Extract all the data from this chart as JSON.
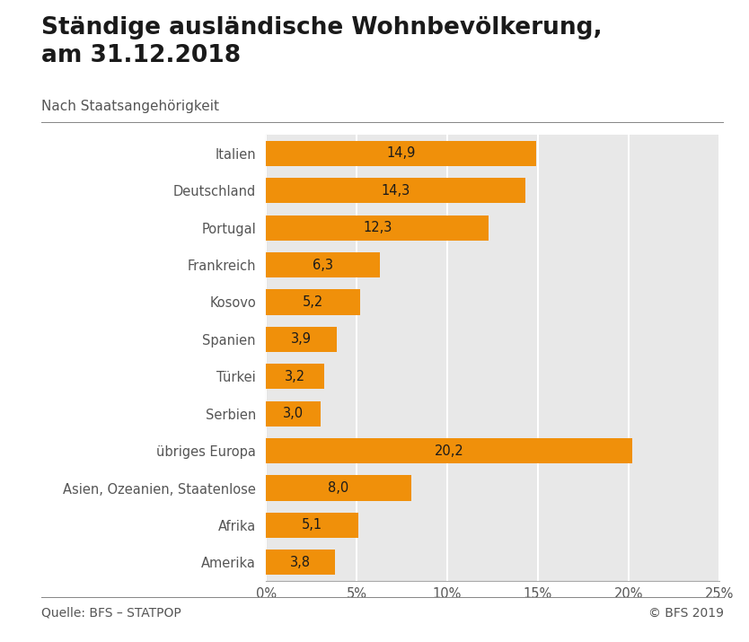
{
  "title_line1": "Ständige ausländische Wohnbevölkerung,",
  "title_line2": "am 31.12.2018",
  "subtitle": "Nach Staatsangehörigkeit",
  "categories": [
    "Italien",
    "Deutschland",
    "Portugal",
    "Frankreich",
    "Kosovo",
    "Spanien",
    "Türkei",
    "Serbien",
    "übriges Europa",
    "Asien, Ozeanien, Staatenlose",
    "Afrika",
    "Amerika"
  ],
  "values": [
    14.9,
    14.3,
    12.3,
    6.3,
    5.2,
    3.9,
    3.2,
    3.0,
    20.2,
    8.0,
    5.1,
    3.8
  ],
  "bar_color": "#F0900A",
  "background_color": "#E8E8E8",
  "figure_background": "#FFFFFF",
  "xlim": [
    0,
    25
  ],
  "xticks": [
    0,
    5,
    10,
    15,
    20,
    25
  ],
  "xtick_labels": [
    "0%",
    "5%",
    "10%",
    "15%",
    "20%",
    "25%"
  ],
  "source_left": "Quelle: BFS – STATPOP",
  "source_right": "© BFS 2019",
  "title_fontsize": 19,
  "subtitle_fontsize": 11,
  "tick_fontsize": 10.5,
  "bar_label_fontsize": 10.5,
  "source_fontsize": 10,
  "title_color": "#1a1a1a",
  "subtitle_color": "#555555",
  "tick_color": "#555555",
  "bar_label_color": "#1a1a1a",
  "source_color": "#555555",
  "grid_color": "#FFFFFF",
  "border_color": "#AAAAAA"
}
